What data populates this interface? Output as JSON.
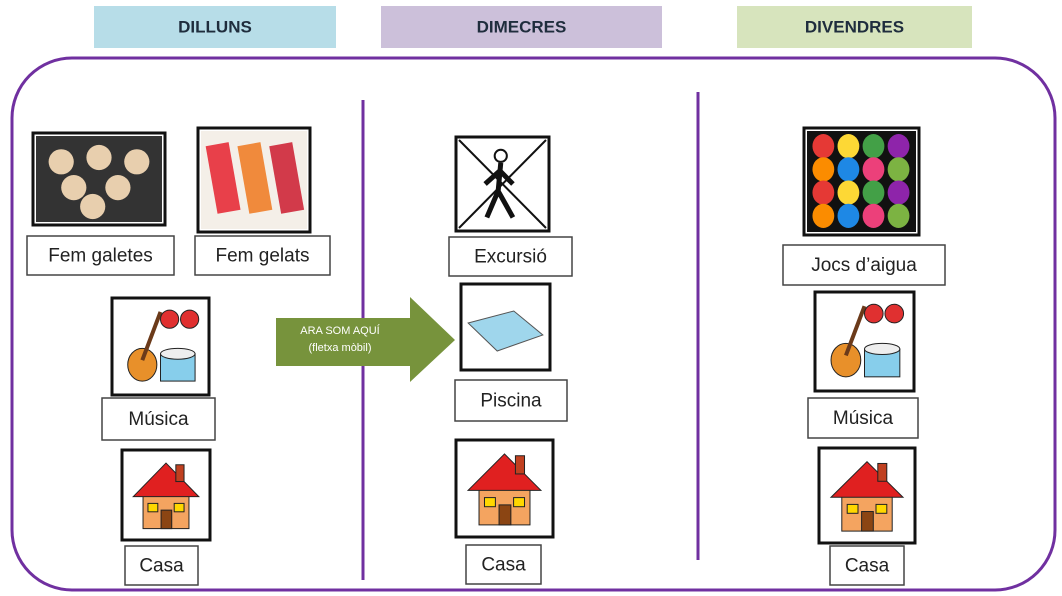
{
  "days": [
    {
      "title": "DILLUNS",
      "items": [
        "Fem galetes",
        "Fem gelats",
        "Música",
        "Casa"
      ]
    },
    {
      "title": "DIMECRES",
      "items": [
        "Excursió",
        "Piscina",
        "Casa"
      ]
    },
    {
      "title": "DIVENDRES",
      "items": [
        "Jocs d’aigua",
        "Música",
        "Casa"
      ]
    }
  ],
  "arrow": {
    "line1": "ARA SOM AQUÍ",
    "line2": "(fletxa mòbil)"
  }
}
